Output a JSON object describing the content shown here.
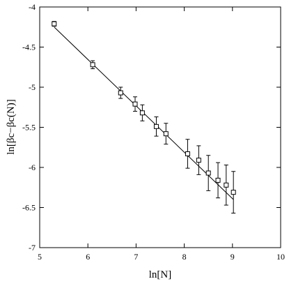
{
  "chart_data": {
    "type": "scatter",
    "title": "",
    "xlabel": "ln[N]",
    "ylabel": "ln[βc−βc(N)]",
    "xlim": [
      5,
      10
    ],
    "ylim": [
      -7,
      -4
    ],
    "x_ticks": [
      "5",
      "6",
      "7",
      "8",
      "9",
      "10"
    ],
    "y_ticks": [
      "-4",
      "-4.5",
      "-5",
      "-5.5",
      "-6",
      "-6.5",
      "-7"
    ],
    "grid": false,
    "marker": "open-square",
    "series": [
      {
        "points": [
          {
            "x": 5.3,
            "y": -4.21,
            "err": 0.03
          },
          {
            "x": 6.1,
            "y": -4.72,
            "err": 0.05
          },
          {
            "x": 6.68,
            "y": -5.07,
            "err": 0.07
          },
          {
            "x": 6.98,
            "y": -5.21,
            "err": 0.09
          },
          {
            "x": 7.13,
            "y": -5.32,
            "err": 0.1
          },
          {
            "x": 7.42,
            "y": -5.49,
            "err": 0.12
          },
          {
            "x": 7.62,
            "y": -5.58,
            "err": 0.13
          },
          {
            "x": 8.07,
            "y": -5.83,
            "err": 0.18
          },
          {
            "x": 8.3,
            "y": -5.91,
            "err": 0.18
          },
          {
            "x": 8.5,
            "y": -6.07,
            "err": 0.22
          },
          {
            "x": 8.7,
            "y": -6.16,
            "err": 0.22
          },
          {
            "x": 8.87,
            "y": -6.22,
            "err": 0.25
          },
          {
            "x": 9.02,
            "y": -6.31,
            "err": 0.26
          }
        ]
      }
    ],
    "fit_line": {
      "x": [
        5.3,
        9.02
      ],
      "y": [
        -4.25,
        -6.4
      ]
    }
  }
}
